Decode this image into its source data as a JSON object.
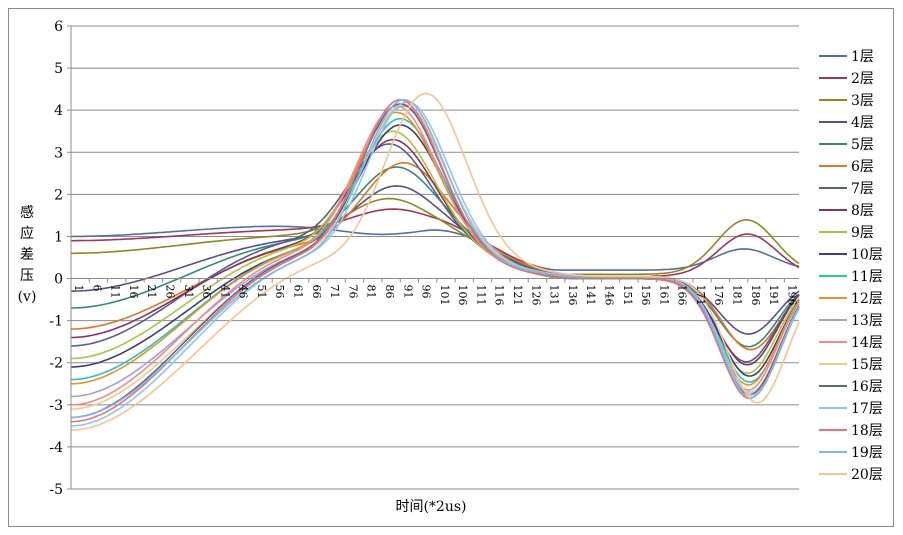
{
  "chart_data": {
    "type": "line",
    "title": "",
    "xlabel": "时间(*2us)",
    "ylabel_chars": [
      "感",
      "应",
      "差",
      "压",
      "(v)"
    ],
    "ylim": [
      -5,
      6
    ],
    "yticks": [
      "-5",
      "-4",
      "-3",
      "-2",
      "-1",
      "0",
      "1",
      "2",
      "3",
      "4",
      "5",
      "6"
    ],
    "xticks": [
      "1",
      "6",
      "11",
      "16",
      "21",
      "26",
      "31",
      "36",
      "41",
      "46",
      "51",
      "56",
      "61",
      "66",
      "71",
      "76",
      "81",
      "86",
      "91",
      "96",
      "101",
      "106",
      "111",
      "116",
      "121",
      "126",
      "131",
      "136",
      "141",
      "146",
      "151",
      "156",
      "161",
      "166",
      "171",
      "176",
      "181",
      "186",
      "191",
      "196"
    ],
    "xlim": [
      1,
      200
    ],
    "grid": "horizontal",
    "legend_position": "right",
    "series": [
      {
        "name": "1层",
        "color": "#4f6fa8",
        "params": {
          "s": 0,
          "a": 0.7,
          "c": 0.35,
          "m": -0.6,
          "b": 1.0
        }
      },
      {
        "name": "2层",
        "color": "#a3345e",
        "params": {
          "s": 3,
          "a": 1.4,
          "c": 0.25,
          "m": -0.75,
          "b": 0.9
        }
      },
      {
        "name": "3层",
        "color": "#8e8a17",
        "params": {
          "s": 2,
          "a": 1.8,
          "c": 0.1,
          "m": -0.7,
          "b": 0.6
        }
      },
      {
        "name": "4层",
        "color": "#5c4e90",
        "params": {
          "s": 4,
          "a": 2.2,
          "c": 0.0,
          "m": -0.8,
          "b": -0.3
        }
      },
      {
        "name": "5层",
        "color": "#2f8c7a",
        "params": {
          "s": 4,
          "a": 2.7,
          "c": -0.05,
          "m": -0.8,
          "b": -0.7
        }
      },
      {
        "name": "6层",
        "color": "#e8731a",
        "params": {
          "s": 6,
          "a": 2.9,
          "c": -0.15,
          "m": -0.75,
          "b": -1.2
        }
      },
      {
        "name": "7层",
        "color": "#55608f",
        "params": {
          "s": 2,
          "a": 3.3,
          "c": -0.1,
          "m": -0.8,
          "b": -1.6
        }
      },
      {
        "name": "8层",
        "color": "#8e2f62",
        "params": {
          "s": 3,
          "a": 3.5,
          "c": -0.2,
          "m": -0.75,
          "b": -1.4
        }
      },
      {
        "name": "9层",
        "color": "#a3c93d",
        "params": {
          "s": 3,
          "a": 3.75,
          "c": -0.25,
          "m": -0.8,
          "b": -1.9
        }
      },
      {
        "name": "10层",
        "color": "#3d3f7a",
        "params": {
          "s": 5,
          "a": 3.95,
          "c": -0.3,
          "m": -0.75,
          "b": -2.1
        }
      },
      {
        "name": "11层",
        "color": "#25c4c4",
        "params": {
          "s": 5,
          "a": 4.1,
          "c": -0.3,
          "m": -0.8,
          "b": -2.4
        }
      },
      {
        "name": "12层",
        "color": "#f0901f",
        "params": {
          "s": 4,
          "a": 4.3,
          "c": -0.35,
          "m": -0.75,
          "b": -2.5
        }
      },
      {
        "name": "13层",
        "color": "#9f9df2",
        "params": {
          "s": 6,
          "a": 4.5,
          "c": -0.4,
          "m": -0.8,
          "b": -2.8
        }
      },
      {
        "name": "14层",
        "color": "#f28a8a",
        "params": {
          "s": 4,
          "a": 4.5,
          "c": -0.4,
          "m": -0.75,
          "b": -3.0
        }
      },
      {
        "name": "15层",
        "color": "#f5c88a",
        "params": {
          "s": 6,
          "a": 4.6,
          "c": -0.45,
          "m": -0.75,
          "b": -3.1
        }
      },
      {
        "name": "16层",
        "color": "#5a6b88",
        "params": {
          "s": 5,
          "a": 4.6,
          "c": -0.45,
          "m": -0.8,
          "b": -3.3
        }
      },
      {
        "name": "17层",
        "color": "#8cc7f2",
        "params": {
          "s": 7,
          "a": 4.7,
          "c": -0.5,
          "m": -0.75,
          "b": -3.5
        }
      },
      {
        "name": "18层",
        "color": "#f07070",
        "params": {
          "s": 5,
          "a": 4.75,
          "c": -0.5,
          "m": -0.8,
          "b": -3.4
        }
      },
      {
        "name": "19层",
        "color": "#7eb8e8",
        "params": {
          "s": 6,
          "a": 4.8,
          "c": -0.55,
          "m": -0.75,
          "b": -3.3
        }
      },
      {
        "name": "20层",
        "color": "#f7c48e",
        "params": {
          "s": 12,
          "a": 5.0,
          "c": -0.6,
          "m": -0.75,
          "b": -3.6
        }
      }
    ]
  }
}
